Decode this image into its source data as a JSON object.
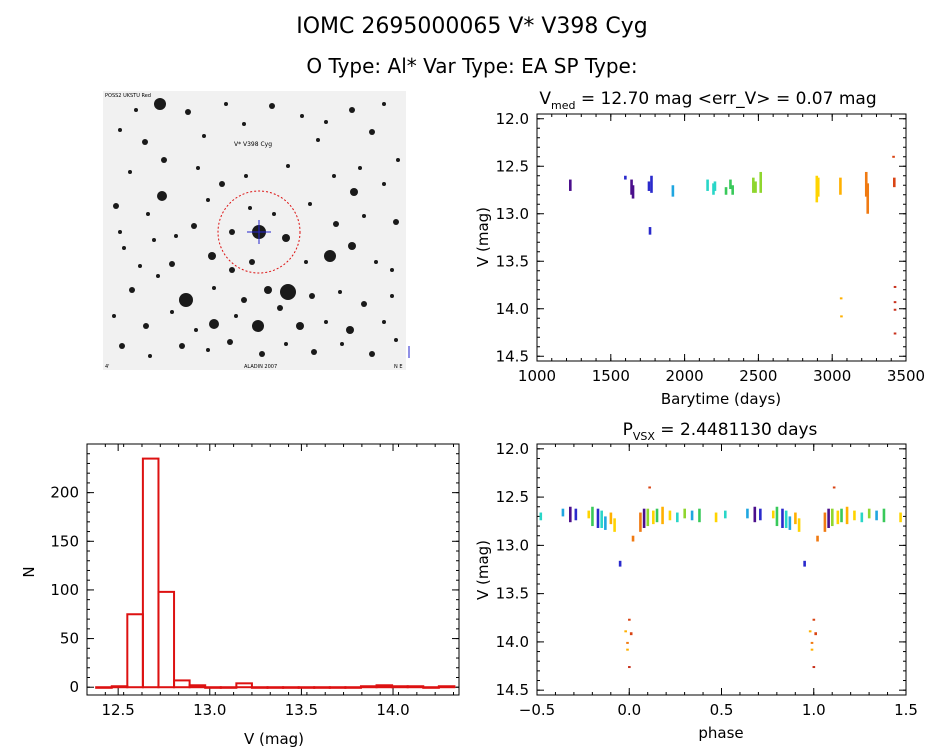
{
  "header": {
    "title_line1": "IOMC 2695000065    V* V398 Cyg",
    "title_line2": "O Type: Al*  Var Type: EA  SP Type:"
  },
  "colors": {
    "histogram": "#dd1111",
    "aperture_circle": "#dd1111",
    "crosshair": "#2222cc",
    "series_palette": [
      "#4b0f8c",
      "#2a2acc",
      "#1fa6e0",
      "#29d6c8",
      "#39c95a",
      "#8fd62e",
      "#ffd400",
      "#ffb000",
      "#f07a12",
      "#d94414",
      "#c8321e"
    ]
  },
  "finder": {
    "label_top_left": "POSS2 UKSTU Red",
    "label_target": "V* V398 Cyg",
    "label_bottom_left": "4'",
    "label_bottom_center": "ALADIN 2007",
    "label_bottom_right": "N E"
  },
  "chart_data": [
    {
      "id": "lightcurve",
      "type": "scatter",
      "title_main": "V",
      "title_sub": "med",
      "title_rest": " = 12.70 mag <err_V> = 0.07 mag",
      "xlabel": "Barytime (days)",
      "ylabel": "V (mag)",
      "xlim": [
        1000,
        3500
      ],
      "ylim": [
        14.55,
        11.95
      ],
      "xticks": [
        1000,
        1500,
        2000,
        2500,
        3000,
        3500
      ],
      "xtick_labels": [
        "1000",
        "1500",
        "2000",
        "2500",
        "3000",
        "3500"
      ],
      "yticks": [
        12.0,
        12.5,
        13.0,
        13.5,
        14.0,
        14.5
      ],
      "ytick_labels": [
        "12.0",
        "12.5",
        "13.0",
        "13.5",
        "14.0",
        "14.5"
      ],
      "segments": [
        {
          "x": 1225,
          "y1": 12.64,
          "y2": 12.76,
          "c": 0
        },
        {
          "x": 1598,
          "y1": 12.6,
          "y2": 12.64,
          "c": 1
        },
        {
          "x": 1640,
          "y1": 12.64,
          "y2": 12.8,
          "c": 0
        },
        {
          "x": 1650,
          "y1": 12.7,
          "y2": 12.84,
          "c": 0
        },
        {
          "x": 1758,
          "y1": 12.66,
          "y2": 12.76,
          "c": 1
        },
        {
          "x": 1765,
          "y1": 13.14,
          "y2": 13.22,
          "c": 1
        },
        {
          "x": 1775,
          "y1": 12.6,
          "y2": 12.78,
          "c": 1
        },
        {
          "x": 1920,
          "y1": 12.7,
          "y2": 12.82,
          "c": 2
        },
        {
          "x": 2155,
          "y1": 12.64,
          "y2": 12.76,
          "c": 3
        },
        {
          "x": 2195,
          "y1": 12.68,
          "y2": 12.8,
          "c": 3
        },
        {
          "x": 2205,
          "y1": 12.66,
          "y2": 12.76,
          "c": 3
        },
        {
          "x": 2280,
          "y1": 12.72,
          "y2": 12.8,
          "c": 4
        },
        {
          "x": 2310,
          "y1": 12.64,
          "y2": 12.74,
          "c": 4
        },
        {
          "x": 2325,
          "y1": 12.7,
          "y2": 12.8,
          "c": 4
        },
        {
          "x": 2465,
          "y1": 12.62,
          "y2": 12.78,
          "c": 5
        },
        {
          "x": 2480,
          "y1": 12.66,
          "y2": 12.78,
          "c": 5
        },
        {
          "x": 2515,
          "y1": 12.56,
          "y2": 12.78,
          "c": 5
        },
        {
          "x": 2895,
          "y1": 12.6,
          "y2": 12.88,
          "c": 6
        },
        {
          "x": 2905,
          "y1": 12.62,
          "y2": 12.82,
          "c": 6
        },
        {
          "x": 3055,
          "y1": 12.62,
          "y2": 12.8,
          "c": 7
        },
        {
          "x": 3060,
          "y1": 13.88,
          "y2": 13.9,
          "c": 7
        },
        {
          "x": 3062,
          "y1": 14.07,
          "y2": 14.09,
          "c": 7
        },
        {
          "x": 3230,
          "y1": 12.56,
          "y2": 12.82,
          "c": 8
        },
        {
          "x": 3240,
          "y1": 12.68,
          "y2": 13.0,
          "c": 8
        },
        {
          "x": 3415,
          "y1": 12.39,
          "y2": 12.41,
          "c": 9
        },
        {
          "x": 3420,
          "y1": 12.62,
          "y2": 12.72,
          "c": 9
        },
        {
          "x": 3425,
          "y1": 13.76,
          "y2": 13.78,
          "c": 10
        },
        {
          "x": 3425,
          "y1": 13.92,
          "y2": 13.94,
          "c": 10
        },
        {
          "x": 3425,
          "y1": 14.0,
          "y2": 14.02,
          "c": 10
        },
        {
          "x": 3425,
          "y1": 14.25,
          "y2": 14.27,
          "c": 10
        }
      ]
    },
    {
      "id": "histogram",
      "type": "bar",
      "xlabel": "V (mag)",
      "ylabel": "N",
      "xlim": [
        12.33,
        14.36
      ],
      "ylim": [
        -8,
        250
      ],
      "xticks": [
        12.5,
        13.0,
        13.5,
        14.0
      ],
      "xtick_labels": [
        "12.5",
        "13.0",
        "13.5",
        "14.0"
      ],
      "yticks": [
        0,
        50,
        100,
        150,
        200
      ],
      "ytick_labels": [
        "0",
        "50",
        "100",
        "150",
        "200"
      ],
      "bin_width": 0.085,
      "bin_starts": [
        12.38,
        12.465,
        12.55,
        12.635,
        12.72,
        12.805,
        12.89,
        12.975,
        13.06,
        13.145,
        13.23,
        13.315,
        13.4,
        13.485,
        13.57,
        13.655,
        13.74,
        13.825,
        13.91,
        13.995,
        14.08,
        14.165,
        14.25
      ],
      "values": [
        0,
        1,
        75,
        235,
        98,
        7,
        2,
        0,
        0,
        4,
        0,
        0,
        0,
        0,
        0,
        0,
        0,
        1,
        2,
        1,
        1,
        0,
        1
      ]
    },
    {
      "id": "phase",
      "type": "scatter",
      "title_main": "P",
      "title_sub": "VSX",
      "title_rest": " = 2.4481130 days",
      "xlabel": "phase",
      "ylabel": "V (mag)",
      "period_days": 2.448113,
      "xlim": [
        -0.5,
        1.5
      ],
      "ylim": [
        14.55,
        11.95
      ],
      "xticks": [
        -0.5,
        0.0,
        0.5,
        1.0,
        1.5
      ],
      "xtick_labels": [
        "−0.5",
        "0.0",
        "0.5",
        "1.0",
        "1.5"
      ],
      "yticks": [
        12.0,
        12.5,
        13.0,
        13.5,
        14.0,
        14.5
      ],
      "ytick_labels": [
        "12.0",
        "12.5",
        "13.0",
        "13.5",
        "14.0",
        "14.5"
      ],
      "segments": [
        {
          "x": -0.48,
          "y1": 12.66,
          "y2": 12.74,
          "c": 3
        },
        {
          "x": -0.36,
          "y1": 12.62,
          "y2": 12.7,
          "c": 2
        },
        {
          "x": -0.32,
          "y1": 12.6,
          "y2": 12.76,
          "c": 0
        },
        {
          "x": -0.29,
          "y1": 12.62,
          "y2": 12.74,
          "c": 1
        },
        {
          "x": -0.22,
          "y1": 12.64,
          "y2": 12.72,
          "c": 6
        },
        {
          "x": -0.2,
          "y1": 12.6,
          "y2": 12.8,
          "c": 4
        },
        {
          "x": -0.17,
          "y1": 12.62,
          "y2": 12.82,
          "c": 1
        },
        {
          "x": -0.15,
          "y1": 12.64,
          "y2": 12.82,
          "c": 3
        },
        {
          "x": -0.13,
          "y1": 12.7,
          "y2": 12.84,
          "c": 2
        },
        {
          "x": -0.1,
          "y1": 12.66,
          "y2": 12.78,
          "c": 7
        },
        {
          "x": -0.08,
          "y1": 12.72,
          "y2": 12.86,
          "c": 6
        },
        {
          "x": -0.05,
          "y1": 13.16,
          "y2": 13.22,
          "c": 1
        },
        {
          "x": -0.02,
          "y1": 13.88,
          "y2": 13.9,
          "c": 7
        },
        {
          "x": -0.01,
          "y1": 14.0,
          "y2": 14.02,
          "c": 8
        },
        {
          "x": -0.01,
          "y1": 14.07,
          "y2": 14.09,
          "c": 7
        },
        {
          "x": 0.0,
          "y1": 13.76,
          "y2": 13.78,
          "c": 9
        },
        {
          "x": 0.0,
          "y1": 14.25,
          "y2": 14.27,
          "c": 10
        },
        {
          "x": 0.01,
          "y1": 13.9,
          "y2": 13.93,
          "c": 9
        },
        {
          "x": 0.02,
          "y1": 12.9,
          "y2": 12.96,
          "c": 8
        },
        {
          "x": 0.06,
          "y1": 12.66,
          "y2": 12.86,
          "c": 8
        },
        {
          "x": 0.08,
          "y1": 12.62,
          "y2": 12.82,
          "c": 0
        },
        {
          "x": 0.1,
          "y1": 12.62,
          "y2": 12.8,
          "c": 5
        },
        {
          "x": 0.11,
          "y1": 12.39,
          "y2": 12.41,
          "c": 9
        },
        {
          "x": 0.13,
          "y1": 12.64,
          "y2": 12.78,
          "c": 6
        },
        {
          "x": 0.15,
          "y1": 12.62,
          "y2": 12.76,
          "c": 4
        },
        {
          "x": 0.18,
          "y1": 12.6,
          "y2": 12.78,
          "c": 7
        },
        {
          "x": 0.22,
          "y1": 12.64,
          "y2": 12.74,
          "c": 6
        },
        {
          "x": 0.26,
          "y1": 12.66,
          "y2": 12.76,
          "c": 3
        },
        {
          "x": 0.3,
          "y1": 12.62,
          "y2": 12.72,
          "c": 5
        },
        {
          "x": 0.34,
          "y1": 12.64,
          "y2": 12.74,
          "c": 2
        },
        {
          "x": 0.38,
          "y1": 12.62,
          "y2": 12.76,
          "c": 4
        },
        {
          "x": 0.47,
          "y1": 12.66,
          "y2": 12.76,
          "c": 6
        },
        {
          "x": 0.52,
          "y1": 12.64,
          "y2": 12.72,
          "c": 3
        },
        {
          "x": 0.64,
          "y1": 12.62,
          "y2": 12.72,
          "c": 2
        },
        {
          "x": 0.68,
          "y1": 12.6,
          "y2": 12.76,
          "c": 0
        },
        {
          "x": 0.71,
          "y1": 12.62,
          "y2": 12.74,
          "c": 1
        },
        {
          "x": 0.78,
          "y1": 12.64,
          "y2": 12.72,
          "c": 6
        },
        {
          "x": 0.8,
          "y1": 12.6,
          "y2": 12.8,
          "c": 4
        },
        {
          "x": 0.83,
          "y1": 12.62,
          "y2": 12.82,
          "c": 1
        },
        {
          "x": 0.85,
          "y1": 12.64,
          "y2": 12.82,
          "c": 3
        },
        {
          "x": 0.87,
          "y1": 12.7,
          "y2": 12.84,
          "c": 2
        },
        {
          "x": 0.9,
          "y1": 12.66,
          "y2": 12.78,
          "c": 7
        },
        {
          "x": 0.92,
          "y1": 12.72,
          "y2": 12.86,
          "c": 6
        },
        {
          "x": 0.95,
          "y1": 13.16,
          "y2": 13.22,
          "c": 1
        },
        {
          "x": 0.98,
          "y1": 13.88,
          "y2": 13.9,
          "c": 7
        },
        {
          "x": 0.99,
          "y1": 14.0,
          "y2": 14.02,
          "c": 8
        },
        {
          "x": 0.99,
          "y1": 14.07,
          "y2": 14.09,
          "c": 7
        },
        {
          "x": 1.0,
          "y1": 13.76,
          "y2": 13.78,
          "c": 9
        },
        {
          "x": 1.0,
          "y1": 14.25,
          "y2": 14.27,
          "c": 10
        },
        {
          "x": 1.01,
          "y1": 13.9,
          "y2": 13.93,
          "c": 9
        },
        {
          "x": 1.02,
          "y1": 12.9,
          "y2": 12.96,
          "c": 8
        },
        {
          "x": 1.06,
          "y1": 12.66,
          "y2": 12.86,
          "c": 8
        },
        {
          "x": 1.08,
          "y1": 12.62,
          "y2": 12.82,
          "c": 0
        },
        {
          "x": 1.1,
          "y1": 12.62,
          "y2": 12.8,
          "c": 5
        },
        {
          "x": 1.11,
          "y1": 12.39,
          "y2": 12.41,
          "c": 9
        },
        {
          "x": 1.13,
          "y1": 12.64,
          "y2": 12.78,
          "c": 6
        },
        {
          "x": 1.15,
          "y1": 12.62,
          "y2": 12.76,
          "c": 4
        },
        {
          "x": 1.18,
          "y1": 12.6,
          "y2": 12.78,
          "c": 7
        },
        {
          "x": 1.22,
          "y1": 12.64,
          "y2": 12.74,
          "c": 6
        },
        {
          "x": 1.26,
          "y1": 12.66,
          "y2": 12.76,
          "c": 3
        },
        {
          "x": 1.3,
          "y1": 12.62,
          "y2": 12.72,
          "c": 5
        },
        {
          "x": 1.34,
          "y1": 12.64,
          "y2": 12.74,
          "c": 2
        },
        {
          "x": 1.38,
          "y1": 12.62,
          "y2": 12.76,
          "c": 4
        },
        {
          "x": 1.47,
          "y1": 12.66,
          "y2": 12.76,
          "c": 6
        }
      ]
    }
  ]
}
